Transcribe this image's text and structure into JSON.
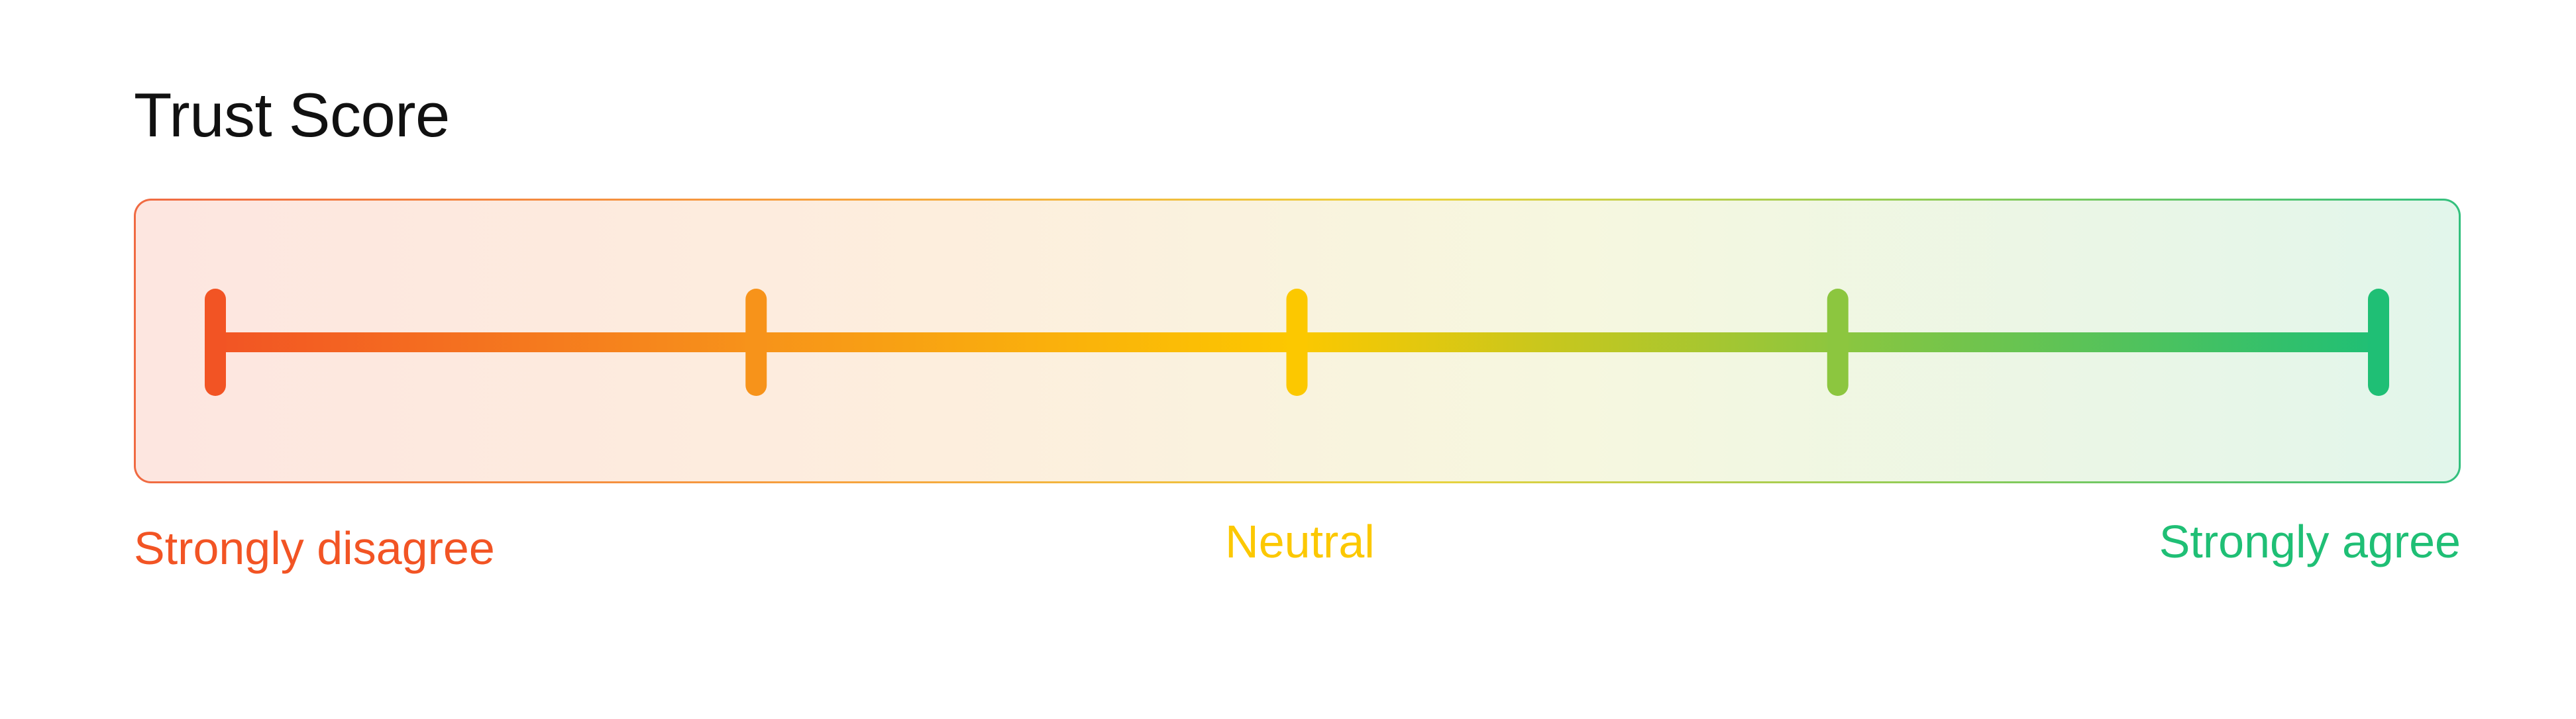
{
  "title": "Trust Score",
  "scale": {
    "points": 5,
    "labels": {
      "left": "Strongly disagree",
      "center": "Neutral",
      "right": "Strongly agree"
    },
    "colors": {
      "left": "#f25424",
      "second": "#f7931a",
      "center": "#fcc800",
      "fourth": "#8cc63f",
      "right": "#1fbf75"
    }
  }
}
